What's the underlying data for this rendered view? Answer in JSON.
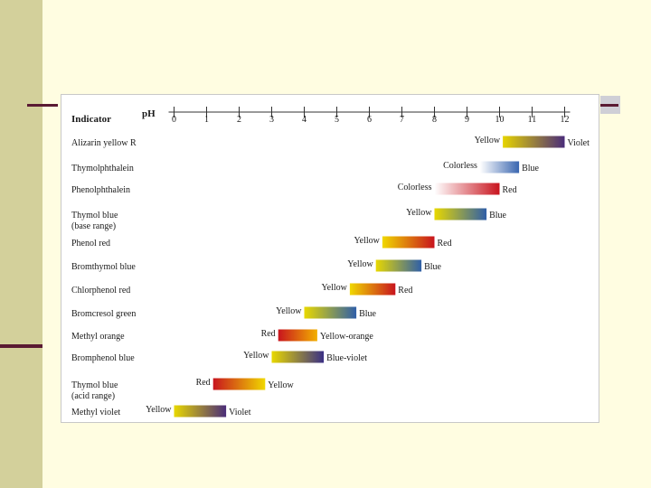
{
  "chart_data": {
    "type": "range-bar",
    "header": {
      "column_label": "Indicator",
      "axis_label": "pH"
    },
    "x_ticks": [
      0,
      1,
      2,
      3,
      4,
      5,
      6,
      7,
      8,
      9,
      10,
      11,
      12
    ],
    "xlim": [
      0,
      12
    ],
    "indicators": [
      {
        "name": [
          "Alizarin yellow R"
        ],
        "range": [
          10.1,
          12.0
        ],
        "low_color": "Yellow",
        "high_color": "Violet",
        "gradient": [
          "#e6d400",
          "#4a2c7a"
        ]
      },
      {
        "name": [
          "Thymolphthalein"
        ],
        "range": [
          9.4,
          10.6
        ],
        "low_color": "Colorless",
        "high_color": "Blue",
        "gradient": [
          "#ffffff",
          "#3a66b0"
        ]
      },
      {
        "name": [
          "Phenolphthalein"
        ],
        "range": [
          8.0,
          10.0
        ],
        "low_color": "Colorless",
        "high_color": "Red",
        "gradient": [
          "#ffffff",
          "#c8141e"
        ]
      },
      {
        "name": [
          "Thymol blue",
          "(base range)"
        ],
        "range": [
          8.0,
          9.6
        ],
        "low_color": "Yellow",
        "high_color": "Blue",
        "gradient": [
          "#e8d800",
          "#2f5fa8"
        ]
      },
      {
        "name": [
          "Phenol red"
        ],
        "range": [
          6.4,
          8.0
        ],
        "low_color": "Yellow",
        "high_color": "Red",
        "gradient": [
          "#f0d800",
          "#c8141e"
        ]
      },
      {
        "name": [
          "Bromthymol blue"
        ],
        "range": [
          6.2,
          7.6
        ],
        "low_color": "Yellow",
        "high_color": "Blue",
        "gradient": [
          "#e8d800",
          "#2f5fa8"
        ]
      },
      {
        "name": [
          "Chlorphenol red"
        ],
        "range": [
          5.4,
          6.8
        ],
        "low_color": "Yellow",
        "high_color": "Red",
        "gradient": [
          "#f0d800",
          "#c8141e"
        ]
      },
      {
        "name": [
          "Bromcresol green"
        ],
        "range": [
          4.0,
          5.6
        ],
        "low_color": "Yellow",
        "high_color": "Blue",
        "gradient": [
          "#e8d800",
          "#2f5fa8"
        ]
      },
      {
        "name": [
          "Methyl orange"
        ],
        "range": [
          3.2,
          4.4
        ],
        "low_color": "Red",
        "high_color": "Yellow-orange",
        "gradient": [
          "#c8141e",
          "#f2b000"
        ]
      },
      {
        "name": [
          "Bromphenol blue"
        ],
        "range": [
          3.0,
          4.6
        ],
        "low_color": "Yellow",
        "high_color": "Blue-violet",
        "gradient": [
          "#e8d800",
          "#3a2f85"
        ]
      },
      {
        "name": [
          "Thymol blue",
          "(acid range)"
        ],
        "range": [
          1.2,
          2.8
        ],
        "low_color": "Red",
        "high_color": "Yellow",
        "gradient": [
          "#c8141e",
          "#f0d800"
        ]
      },
      {
        "name": [
          "Methyl violet"
        ],
        "range": [
          0.0,
          1.6
        ],
        "low_color": "Yellow",
        "high_color": "Violet",
        "gradient": [
          "#e8d800",
          "#4a2c7a"
        ]
      }
    ]
  }
}
